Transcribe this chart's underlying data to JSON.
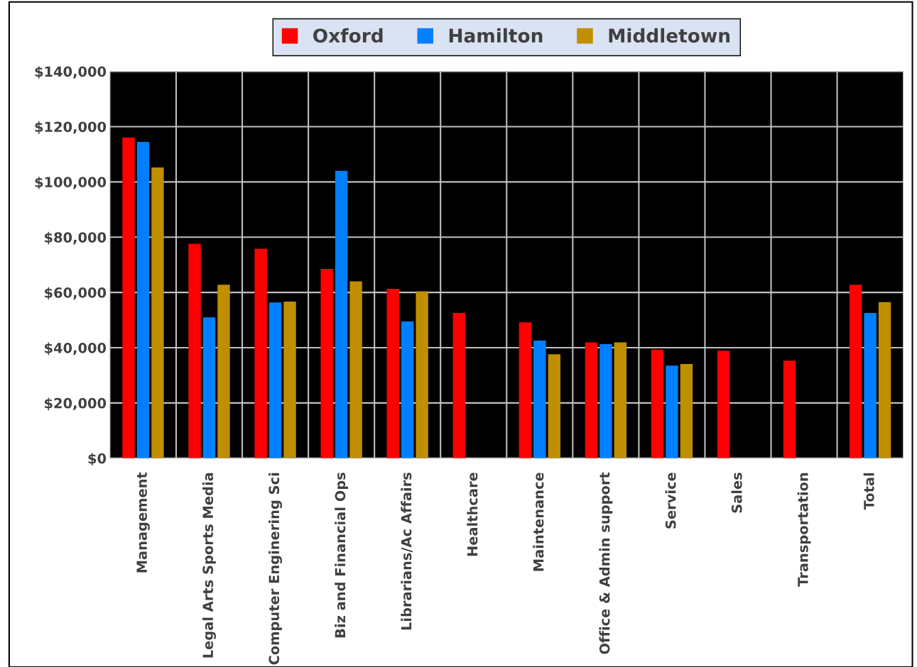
{
  "chart_data": {
    "type": "bar",
    "categories": [
      "Management",
      "Legal Arts Sports Media",
      "Computer Enginering Sci",
      "Biz and Financial Ops",
      "Librarians/Ac Affairs",
      "Healthcare",
      "Maintenance",
      "Office & Admin support",
      "Service",
      "Sales",
      "Transportation",
      "Total"
    ],
    "series": [
      {
        "name": "Oxford",
        "color": "#ff0000",
        "values": [
          116100,
          77600,
          75800,
          68500,
          61300,
          52600,
          49200,
          41900,
          39300,
          38900,
          35300,
          62800
        ]
      },
      {
        "name": "Hamilton",
        "color": "#0080ff",
        "values": [
          114500,
          51000,
          56400,
          104000,
          49500,
          null,
          42600,
          41300,
          33500,
          null,
          null,
          52600
        ]
      },
      {
        "name": "Middletown",
        "color": "#bf8f00",
        "values": [
          105200,
          62800,
          56700,
          64000,
          60400,
          null,
          37600,
          41900,
          34100,
          null,
          null,
          56500
        ]
      }
    ],
    "ylim": [
      0,
      140000
    ],
    "yticks": [
      {
        "value": 0,
        "label": "$0"
      },
      {
        "value": 20000,
        "label": "$20,000"
      },
      {
        "value": 40000,
        "label": "$40,000"
      },
      {
        "value": 60000,
        "label": "$60,000"
      },
      {
        "value": 80000,
        "label": "$80,000"
      },
      {
        "value": 100000,
        "label": "$100,000"
      },
      {
        "value": 120000,
        "label": "$120,000"
      },
      {
        "value": 140000,
        "label": "$140,000"
      }
    ],
    "grid": true,
    "legend": "top"
  }
}
